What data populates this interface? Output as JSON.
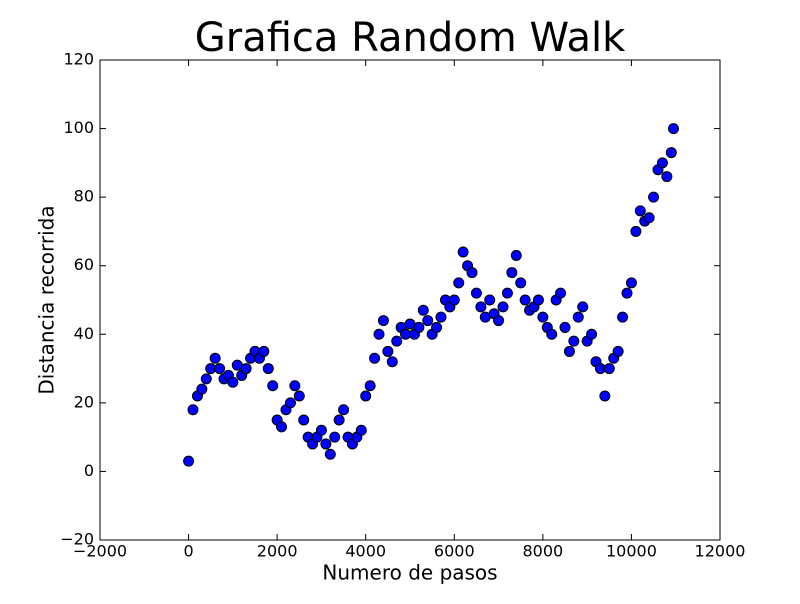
{
  "chart_data": {
    "type": "scatter",
    "title": "Grafica Random Walk",
    "x_label": "Numero de pasos",
    "y_label": "Distancia recorrida",
    "xlim": [
      -2000,
      12000
    ],
    "ylim": [
      -20,
      120
    ],
    "xticks": [
      {
        "value": -2000,
        "label": "−2000"
      },
      0,
      2000,
      4000,
      6000,
      8000,
      10000,
      12000
    ],
    "yticks": [
      {
        "value": -20,
        "label": "−20"
      },
      0,
      20,
      40,
      60,
      80,
      100,
      120
    ],
    "series": [
      {
        "color": "#0000ff",
        "x": [
          0,
          100,
          200,
          300,
          400,
          500,
          600,
          700,
          800,
          900,
          1000,
          1100,
          1200,
          1300,
          1400,
          1500,
          1600,
          1700,
          1800,
          1900,
          2000,
          2100,
          2200,
          2300,
          2400,
          2500,
          2600,
          2700,
          2800,
          2900,
          3000,
          3100,
          3200,
          3300,
          3400,
          3500,
          3600,
          3700,
          3800,
          3900,
          4000,
          4100,
          4200,
          4300,
          4400,
          4500,
          4600,
          4700,
          4800,
          4900,
          5000,
          5100,
          5200,
          5300,
          5400,
          5500,
          5600,
          5700,
          5800,
          5900,
          6000,
          6100,
          6200,
          6300,
          6400,
          6500,
          6600,
          6700,
          6800,
          6900,
          7000,
          7100,
          7200,
          7300,
          7400,
          7500,
          7600,
          7700,
          7800,
          7900,
          8000,
          8100,
          8200,
          8300,
          8400,
          8500,
          8600,
          8700,
          8800,
          8900,
          9000,
          9100,
          9200,
          9300,
          9400,
          9500,
          9600,
          9700,
          9800,
          9900,
          10000,
          10100,
          10200,
          10300,
          10400,
          10500,
          10600,
          10700,
          10800,
          10900,
          10950
        ],
        "values": [
          3,
          18,
          22,
          24,
          27,
          30,
          33,
          30,
          27,
          28,
          26,
          31,
          28,
          30,
          33,
          35,
          33,
          35,
          30,
          25,
          15,
          13,
          18,
          20,
          25,
          22,
          15,
          10,
          8,
          10,
          12,
          8,
          5,
          10,
          15,
          18,
          10,
          8,
          10,
          12,
          22,
          25,
          33,
          40,
          44,
          35,
          32,
          38,
          42,
          40,
          43,
          40,
          42,
          47,
          44,
          40,
          42,
          45,
          50,
          48,
          50,
          55,
          64,
          60,
          58,
          52,
          48,
          45,
          50,
          46,
          44,
          48,
          52,
          58,
          63,
          55,
          50,
          47,
          48,
          50,
          45,
          42,
          40,
          50,
          52,
          42,
          35,
          38,
          45,
          48,
          38,
          40,
          32,
          30,
          22,
          30,
          33,
          35,
          45,
          52,
          55,
          70,
          76,
          73,
          74,
          80,
          88,
          90,
          86,
          93,
          100
        ]
      }
    ]
  }
}
